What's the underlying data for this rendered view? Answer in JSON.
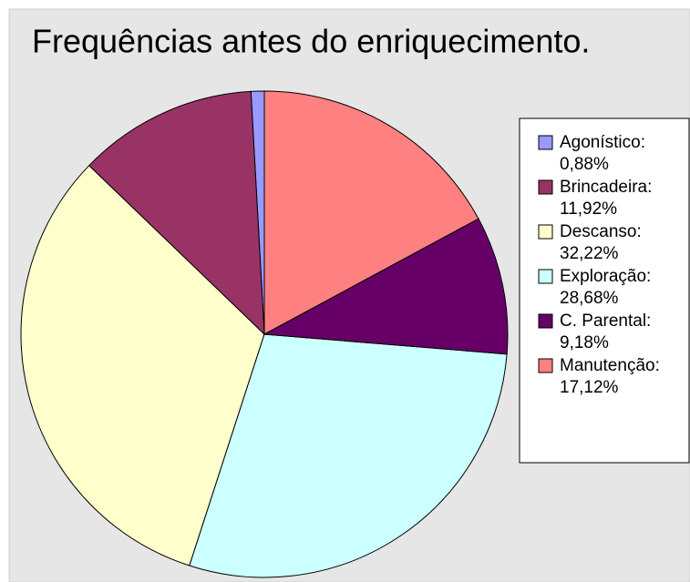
{
  "chart_data": {
    "type": "pie",
    "title": "Frequências antes do enriquecimento.",
    "categories": [
      "Agonístico:",
      "Brincadeira:",
      "Descanso:",
      "Exploração:",
      "C. Parental:",
      "Manutenção:"
    ],
    "values": [
      0.88,
      11.92,
      32.22,
      28.68,
      9.18,
      17.12
    ],
    "value_labels": [
      "0,88%",
      "11,92%",
      "32,22%",
      "28,68%",
      "9,18%",
      "17,12%"
    ],
    "colors": [
      "#9999ff",
      "#993366",
      "#ffffcc",
      "#ccffff",
      "#660066",
      "#ff8080"
    ],
    "legend": "right"
  }
}
